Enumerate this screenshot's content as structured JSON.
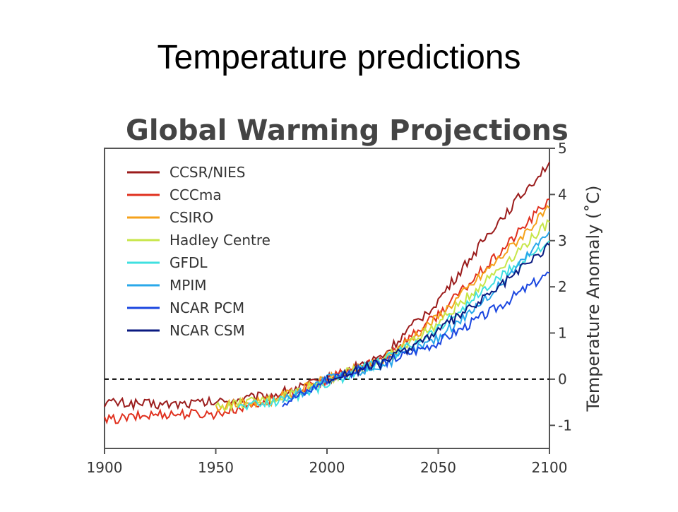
{
  "slide": {
    "title": "Temperature predictions"
  },
  "chart_data": {
    "type": "line",
    "title": "Global Warming Projections",
    "xlabel": "",
    "ylabel": "Temperature Anomaly (˚C)",
    "xlim": [
      1900,
      2100
    ],
    "ylim": [
      -1.5,
      5
    ],
    "xticks": [
      1900,
      1950,
      2000,
      2050,
      2100
    ],
    "yticks": [
      -1,
      0,
      1,
      2,
      3,
      4,
      5
    ],
    "reference_line": {
      "y": 0,
      "style": "dashed"
    },
    "legend_position": "top-left",
    "series": [
      {
        "name": "CCSR/NIES",
        "color": "#9b1c1c",
        "x": [
          1900,
          1925,
          1950,
          1975,
          1990,
          2000,
          2025,
          2050,
          2075,
          2100
        ],
        "y": [
          -0.5,
          -0.55,
          -0.5,
          -0.35,
          -0.15,
          0.0,
          0.5,
          1.7,
          3.3,
          4.7
        ]
      },
      {
        "name": "CCCma",
        "color": "#e0301e",
        "x": [
          1900,
          1925,
          1950,
          1975,
          1990,
          2000,
          2025,
          2050,
          2075,
          2100
        ],
        "y": [
          -0.9,
          -0.75,
          -0.75,
          -0.45,
          -0.2,
          0.0,
          0.45,
          1.4,
          2.6,
          3.9
        ]
      },
      {
        "name": "CSIRO",
        "color": "#f5a21b",
        "x": [
          1950,
          1975,
          1990,
          2000,
          2025,
          2050,
          2075,
          2100
        ],
        "y": [
          -0.6,
          -0.45,
          -0.2,
          0.0,
          0.4,
          1.35,
          2.5,
          3.7
        ]
      },
      {
        "name": "Hadley Centre",
        "color": "#c8e64a",
        "x": [
          1950,
          1975,
          1990,
          2000,
          2025,
          2050,
          2075,
          2100
        ],
        "y": [
          -0.6,
          -0.45,
          -0.2,
          0.0,
          0.4,
          1.2,
          2.3,
          3.4
        ]
      },
      {
        "name": "GFDL",
        "color": "#40e0e0",
        "x": [
          1960,
          1975,
          1990,
          2000,
          2025,
          2050,
          2075,
          2100
        ],
        "y": [
          -0.6,
          -0.5,
          -0.3,
          -0.1,
          0.4,
          1.1,
          2.1,
          3.0
        ]
      },
      {
        "name": "MPIM",
        "color": "#2aa8ea",
        "x": [
          1980,
          1990,
          2000,
          2025,
          2050,
          2075,
          2100
        ],
        "y": [
          -0.45,
          -0.25,
          0.0,
          0.3,
          0.9,
          1.9,
          3.2
        ]
      },
      {
        "name": "NCAR PCM",
        "color": "#1a46e0",
        "x": [
          1980,
          1990,
          2000,
          2025,
          2050,
          2075,
          2100
        ],
        "y": [
          -0.5,
          -0.3,
          0.0,
          0.35,
          0.8,
          1.5,
          2.3
        ]
      },
      {
        "name": "NCAR CSM",
        "color": "#0a1a80",
        "x": [
          2000,
          2025,
          2050,
          2075,
          2100
        ],
        "y": [
          0.0,
          0.35,
          1.05,
          1.9,
          2.9
        ]
      }
    ]
  }
}
